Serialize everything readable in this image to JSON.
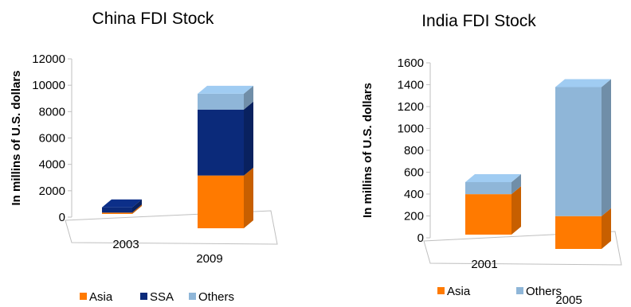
{
  "colors": {
    "Asia": "#ff7a00",
    "SSA": "#0b2a7a",
    "Others": "#8fb6d8"
  },
  "chart_data": [
    {
      "type": "bar",
      "stacked": true,
      "three_d": true,
      "title": "China FDI Stock",
      "ylabel": "In millins of U.S. dollars",
      "xlabel": "",
      "ylim": [
        0,
        12000
      ],
      "yticks": [
        "0",
        "2000",
        "4000",
        "6000",
        "8000",
        "10000",
        "12000"
      ],
      "categories": [
        "2003",
        "2009"
      ],
      "series": [
        {
          "name": "Asia",
          "values": [
            100,
            4000
          ]
        },
        {
          "name": "SSA",
          "values": [
            400,
            5000
          ]
        },
        {
          "name": "Others",
          "values": [
            0,
            1200
          ]
        }
      ],
      "legend": [
        "Asia",
        "SSA",
        "Others"
      ],
      "legend_position": "bottom"
    },
    {
      "type": "bar",
      "stacked": true,
      "three_d": true,
      "title": "India FDI Stock",
      "ylabel": "In millins of U.S. dollars",
      "xlabel": "",
      "ylim": [
        0,
        1600
      ],
      "yticks": [
        "0",
        "200",
        "400",
        "600",
        "800",
        "1000",
        "1200",
        "1400",
        "1600"
      ],
      "categories": [
        "2001",
        "2005"
      ],
      "series": [
        {
          "name": "Asia",
          "values": [
            370,
            300
          ]
        },
        {
          "name": "Others",
          "values": [
            110,
            1180
          ]
        }
      ],
      "legend": [
        "Asia",
        "Others"
      ],
      "legend_position": "bottom"
    }
  ]
}
